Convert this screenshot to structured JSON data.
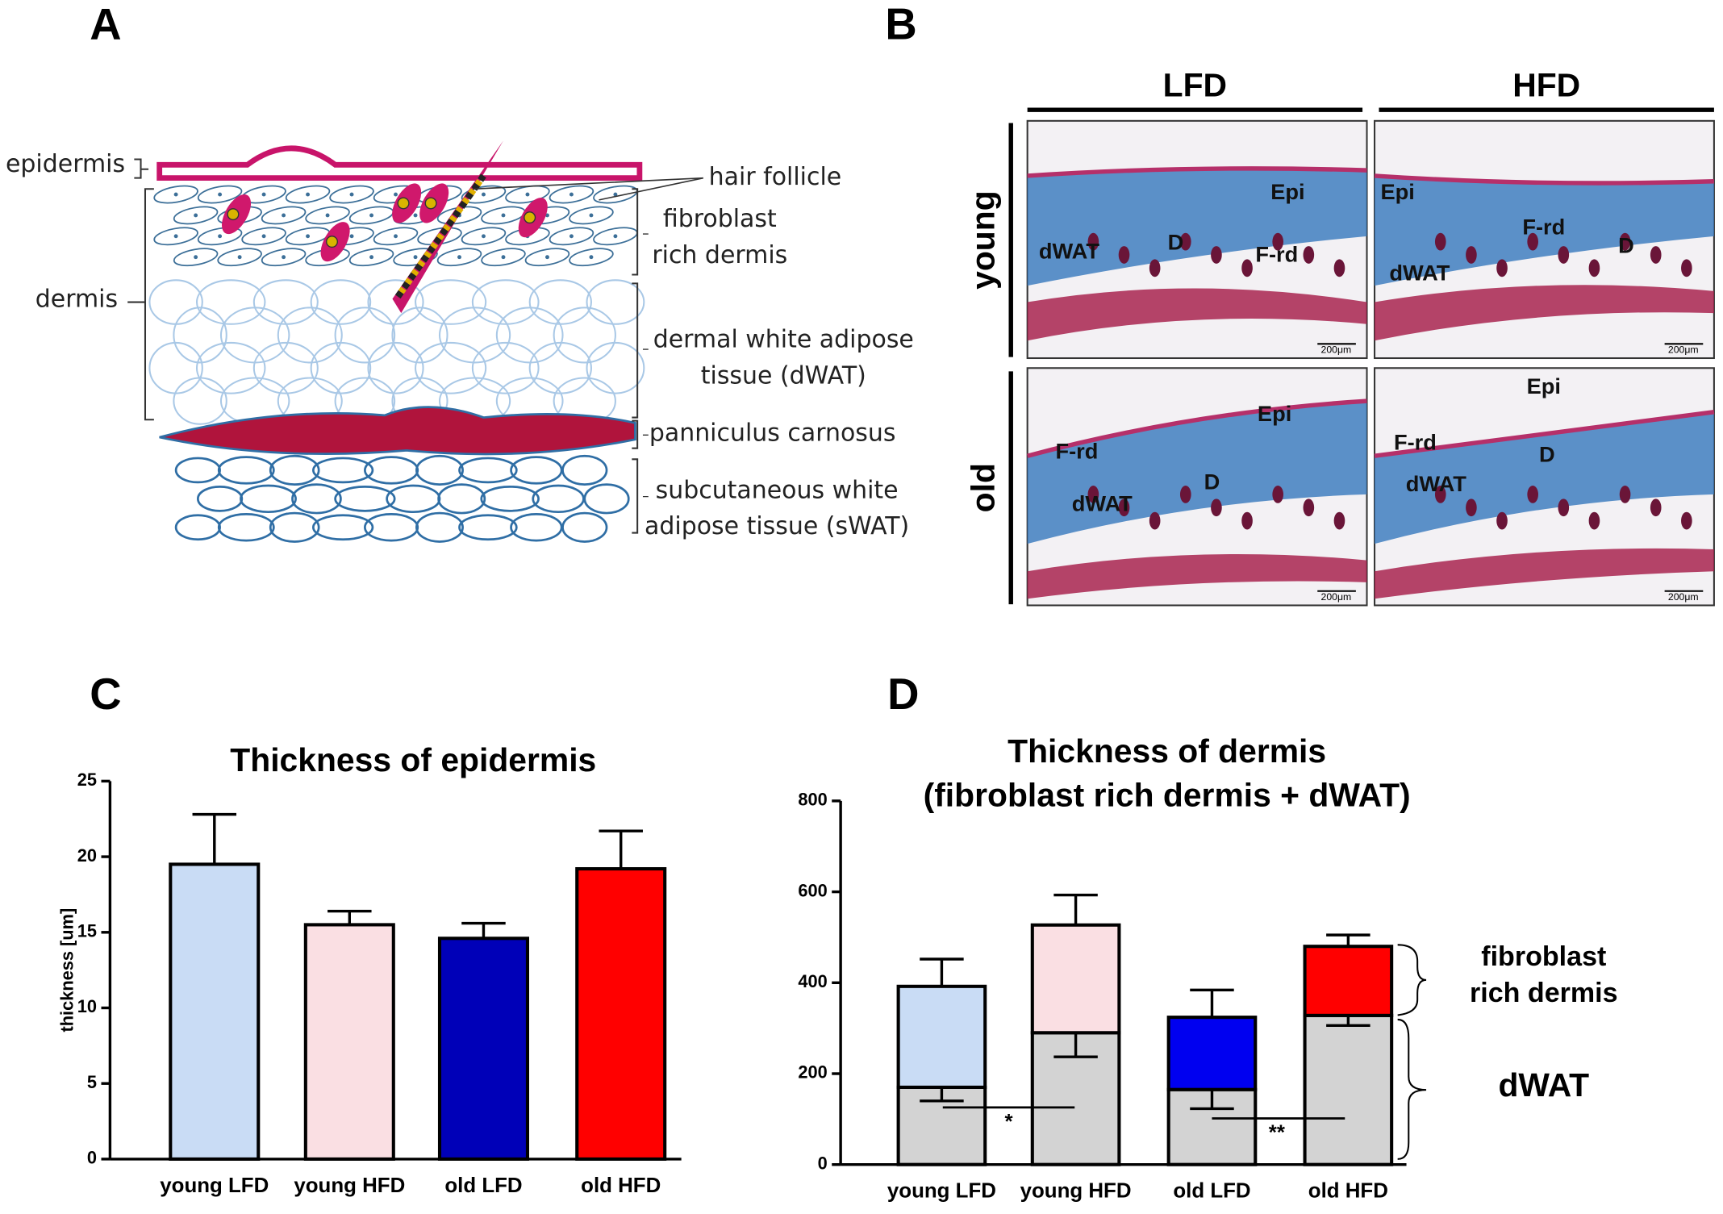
{
  "panel_labels": [
    "A",
    "B",
    "C",
    "D"
  ],
  "diagram": {
    "labels": [
      "epidermis",
      "dermis",
      "hair follicle",
      "fibroblast",
      "rich dermis",
      "dermal white adipose",
      "tissue (dWAT)",
      "panniculus carnosus",
      "subcutaneous white",
      "adipose tissue (sWAT)"
    ]
  },
  "histology": {
    "columns": [
      "LFD",
      "HFD"
    ],
    "rows": [
      "young",
      "old"
    ],
    "scale_bar": "200μm",
    "micrographs": [
      {
        "labels": [
          "Epi",
          "D",
          "F-rd",
          "dWAT"
        ]
      },
      {
        "labels": [
          "Epi",
          "F-rd",
          "D",
          "dWAT"
        ]
      },
      {
        "labels": [
          "Epi",
          "F-rd",
          "D",
          "dWAT"
        ]
      },
      {
        "labels": [
          "Epi",
          "F-rd",
          "D",
          "dWAT"
        ]
      }
    ]
  },
  "chart_data": [
    {
      "type": "bar",
      "title": "Thickness of epidermis",
      "ylabel": "thickness [um]",
      "categories": [
        "young LFD",
        "young HFD",
        "old LFD",
        "old HFD"
      ],
      "values": [
        19.5,
        15.5,
        14.6,
        19.2
      ],
      "errors": [
        3.3,
        0.9,
        1.0,
        2.5
      ],
      "colors": [
        "#c9dcf5",
        "#fadfe3",
        "#0000b8",
        "#ff0000"
      ],
      "ylim": [
        0,
        25
      ],
      "yticks": [
        0,
        5,
        10,
        15,
        20,
        25
      ]
    },
    {
      "type": "stacked_bar",
      "title": [
        "Thickness of dermis",
        "(fibroblast rich dermis + dWAT)"
      ],
      "categories": [
        "young LFD",
        "young HFD",
        "old LFD",
        "old HFD"
      ],
      "series": [
        {
          "name": "dWAT",
          "colors": [
            "#d3d3d3",
            "#d3d3d3",
            "#d3d3d3",
            "#d3d3d3"
          ],
          "values": [
            170,
            290,
            165,
            328
          ],
          "errors": [
            30,
            53,
            42,
            22
          ]
        },
        {
          "name": "fibroblast rich dermis",
          "colors": [
            "#c9dcf5",
            "#fadfe3",
            "#0000f0",
            "#ff0000"
          ],
          "values": [
            222,
            237,
            159,
            152
          ],
          "errors": [
            60,
            66,
            60,
            25
          ]
        }
      ],
      "annotations": [
        "*",
        "**"
      ],
      "ylim": [
        0,
        800
      ],
      "yticks": [
        0,
        200,
        400,
        600,
        800
      ]
    }
  ]
}
